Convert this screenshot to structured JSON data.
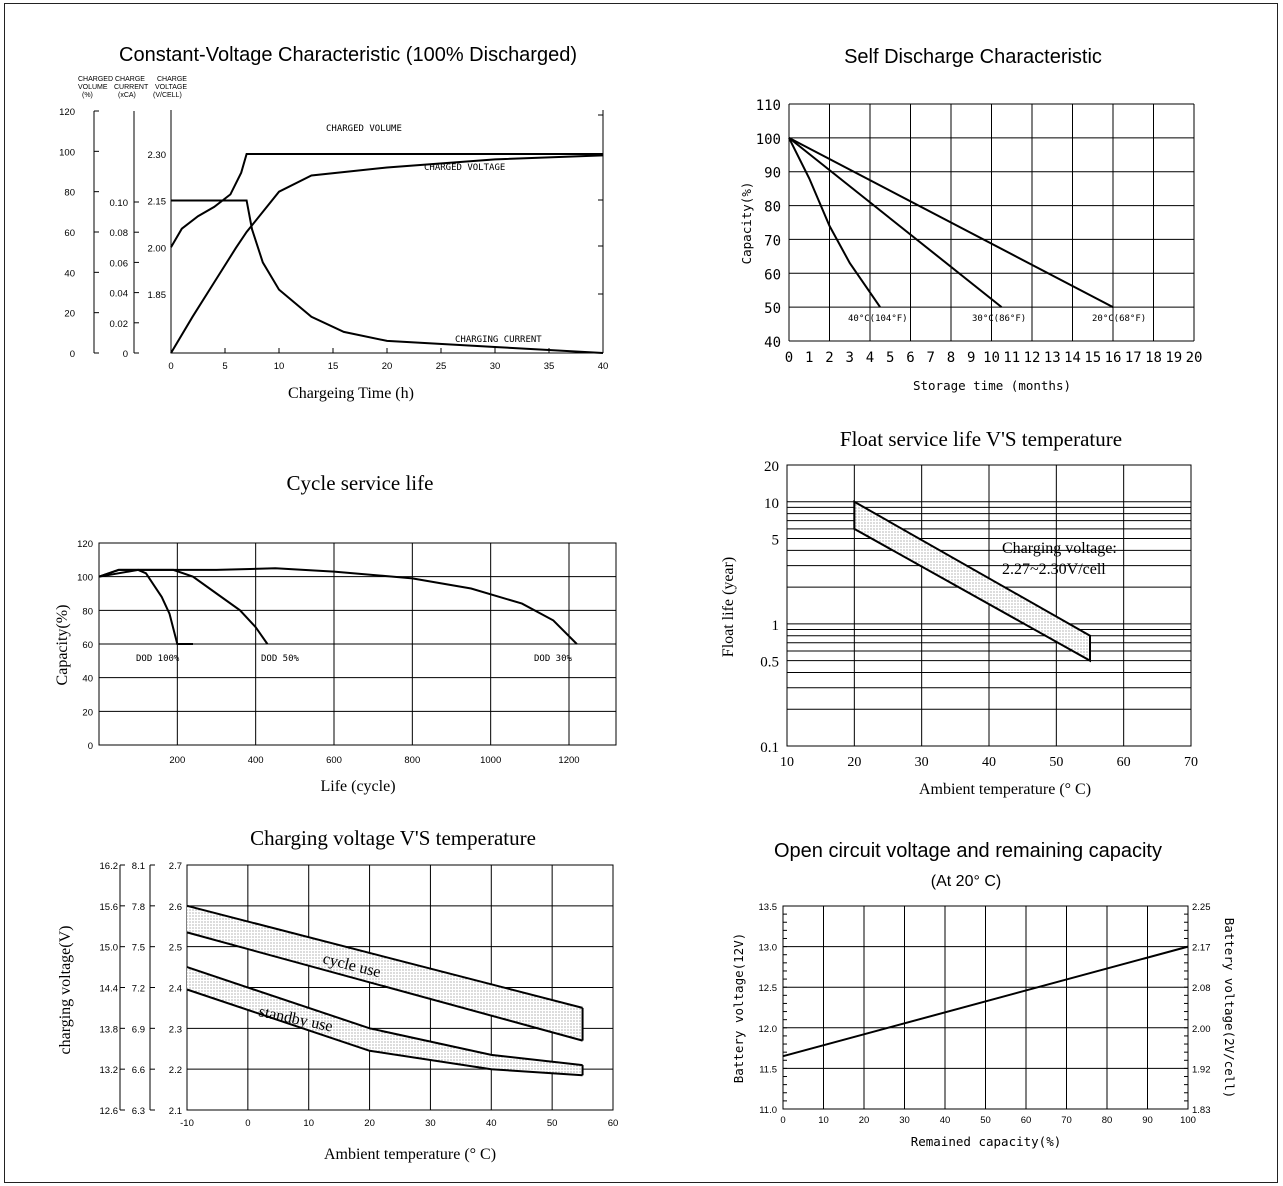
{
  "chart_data": [
    {
      "id": "cv",
      "type": "line",
      "title": "Constant-Voltage Characteristic (100% Discharged)",
      "xlabel": "Chargeing Time (h)",
      "axis_headers": [
        "CHARGED VOLUME (%)",
        "CHARGE CURRENT (xCA)",
        "CHARGE VOLTAGE (V/CELL)"
      ],
      "x_ticks": [
        0,
        5,
        10,
        15,
        20,
        25,
        30,
        35,
        40
      ],
      "volume_ticks": [
        0,
        20,
        40,
        60,
        80,
        100,
        120
      ],
      "current_ticks": [
        "0",
        "0.02",
        "0.04",
        "0.06",
        "0.08",
        "0.10"
      ],
      "voltage_ticks": [
        "1.85",
        "2.00",
        "2.15",
        "2.30"
      ],
      "xlim": [
        0,
        40
      ],
      "series": [
        {
          "name": "CHARGED VOLUME",
          "x": [
            0,
            2,
            4,
            6,
            7,
            10,
            13,
            20,
            30,
            40
          ],
          "y": [
            0,
            18,
            35,
            52,
            60,
            80,
            88,
            92,
            96,
            98
          ]
        },
        {
          "name": "CHARGED VOLTAGE",
          "x": [
            0,
            1,
            2.5,
            4,
            5.5,
            6.5,
            7,
            40
          ],
          "y": [
            2.0,
            2.06,
            2.1,
            2.13,
            2.17,
            2.24,
            2.3,
            2.3
          ]
        },
        {
          "name": "CHARGING CURRENT",
          "x": [
            0,
            7,
            7.5,
            8.5,
            10,
            13,
            16,
            20,
            30,
            40
          ],
          "y": [
            0.101,
            0.101,
            0.082,
            0.06,
            0.042,
            0.024,
            0.014,
            0.008,
            0.004,
            0.0
          ]
        }
      ]
    },
    {
      "id": "sd",
      "type": "line",
      "title": "Self Discharge Characteristic",
      "xlabel": "Storage time (months)",
      "ylabel": "Capacity(%)",
      "xlim": [
        0,
        20
      ],
      "ylim": [
        40,
        110
      ],
      "x_ticks": [
        0,
        1,
        2,
        3,
        4,
        5,
        6,
        7,
        8,
        9,
        10,
        11,
        12,
        13,
        14,
        15,
        16,
        17,
        18,
        19,
        20
      ],
      "y_ticks": [
        40,
        50,
        60,
        70,
        80,
        90,
        100,
        110
      ],
      "series": [
        {
          "name": "40°C(104°F)",
          "x": [
            0,
            1,
            2,
            3,
            4.5
          ],
          "y": [
            100,
            88,
            74,
            63,
            50
          ]
        },
        {
          "name": "30°C(86°F)",
          "x": [
            0,
            10.5
          ],
          "y": [
            100,
            50
          ]
        },
        {
          "name": "20°C(68°F)",
          "x": [
            0,
            16
          ],
          "y": [
            100,
            50
          ]
        }
      ]
    },
    {
      "id": "cyc",
      "type": "line",
      "title": "Cycle service life",
      "xlabel": "Life (cycle)",
      "ylabel": "Capacity(%)",
      "xlim": [
        0,
        1320
      ],
      "ylim": [
        0,
        120
      ],
      "x_ticks": [
        200,
        400,
        600,
        800,
        1000,
        1200
      ],
      "y_ticks": [
        0,
        20,
        40,
        60,
        80,
        100,
        120
      ],
      "series": [
        {
          "name": "DOD 100%",
          "x": [
            0,
            50,
            100,
            120,
            140,
            160,
            180,
            200,
            240
          ],
          "y": [
            100,
            104,
            104,
            102,
            95,
            88,
            78,
            60,
            60
          ]
        },
        {
          "name": "DOD 50%",
          "x": [
            0,
            50,
            100,
            150,
            190,
            240,
            300,
            360,
            400,
            430
          ],
          "y": [
            100,
            104,
            104,
            104,
            104,
            100,
            90,
            80,
            70,
            60
          ]
        },
        {
          "name": "DOD 30%",
          "x": [
            0,
            100,
            200,
            300,
            450,
            600,
            800,
            950,
            1080,
            1160,
            1220
          ],
          "y": [
            100,
            104,
            104,
            104,
            105,
            103,
            99,
            93,
            84,
            74,
            60
          ]
        }
      ],
      "annotations": [
        "DOD 100%",
        "DOD 50%",
        "DOD 30%"
      ]
    },
    {
      "id": "fl",
      "type": "area",
      "title": "Float service life V'S temperature",
      "xlabel": "Ambient temperature (° C)",
      "ylabel": "Float life (year)",
      "xlim": [
        10,
        70
      ],
      "ylim": [
        0.1,
        20
      ],
      "log_y": true,
      "x_ticks": [
        10,
        20,
        30,
        40,
        50,
        60,
        70
      ],
      "y_ticks": [
        "0.1",
        "0.5",
        "1",
        "5",
        "10",
        "20"
      ],
      "annotation": [
        "Charging voltage:",
        "2.27~2.30V/cell"
      ],
      "series": [
        {
          "x": [
            20,
            55
          ],
          "y_upper": [
            10,
            0.8
          ],
          "y_lower": [
            6,
            0.5
          ]
        }
      ]
    },
    {
      "id": "cvt",
      "type": "area",
      "title": "Charging voltage V'S temperature",
      "xlabel": "Ambient temperature (° C)",
      "ylabel": "charging voltage(V)",
      "xlim": [
        -10,
        60
      ],
      "ylim": [
        2.1,
        2.7
      ],
      "x_ticks": [
        -10,
        0,
        10,
        20,
        30,
        40,
        50,
        60
      ],
      "y_ticks_12v": [
        "12.6",
        "13.2",
        "13.8",
        "14.4",
        "15.0",
        "15.6",
        "16.2"
      ],
      "y_ticks_6v": [
        "6.3",
        "6.6",
        "6.9",
        "7.2",
        "7.5",
        "7.8",
        "8.1"
      ],
      "y_ticks_cell": [
        "2.1",
        "2.2",
        "2.3",
        "2.4",
        "2.5",
        "2.6",
        "2.7"
      ],
      "series": [
        {
          "name": "cycle use",
          "x": [
            -10,
            55
          ],
          "y_upper": [
            2.6,
            2.35
          ],
          "y_lower": [
            2.535,
            2.27
          ]
        },
        {
          "name": "standby use",
          "x": [
            -10,
            20,
            40,
            55
          ],
          "y_upper": [
            2.45,
            2.3,
            2.235,
            2.21
          ],
          "y_lower": [
            2.395,
            2.245,
            2.2,
            2.185
          ]
        }
      ]
    },
    {
      "id": "ocv",
      "type": "line",
      "title": "Open circuit voltage and remaining capacity",
      "subtitle": "(At 20° C)",
      "xlabel": "Remained capacity(%)",
      "ylabel": "Battery voltage(12V)",
      "ylabel_right": "Battery voltage(2V/cell)",
      "xlim": [
        0,
        100
      ],
      "ylim": [
        11.0,
        13.5
      ],
      "x_ticks": [
        0,
        10,
        20,
        30,
        40,
        50,
        60,
        70,
        80,
        90,
        100
      ],
      "y_ticks": [
        "11.0",
        "11.5",
        "12.0",
        "12.5",
        "13.0",
        "13.5"
      ],
      "y_ticks_right": [
        "1.83",
        "1.92",
        "2.00",
        "2.08",
        "2.17",
        "2.25"
      ],
      "series": [
        {
          "x": [
            0,
            100
          ],
          "y": [
            11.65,
            13.0
          ]
        }
      ]
    }
  ]
}
